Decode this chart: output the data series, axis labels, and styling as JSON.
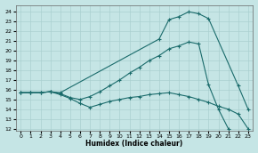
{
  "xlabel": "Humidex (Indice chaleur)",
  "xlim": [
    -0.5,
    23.5
  ],
  "ylim": [
    11.8,
    24.7
  ],
  "yticks": [
    12,
    13,
    14,
    15,
    16,
    17,
    18,
    19,
    20,
    21,
    22,
    23,
    24
  ],
  "xticks": [
    0,
    1,
    2,
    3,
    4,
    5,
    6,
    7,
    8,
    9,
    10,
    11,
    12,
    13,
    14,
    15,
    16,
    17,
    18,
    19,
    20,
    21,
    22,
    23
  ],
  "bg_color": "#c5e5e5",
  "line_color": "#1a6b6b",
  "grid_color": "#aad0d0",
  "lines": [
    {
      "x": [
        0,
        1,
        2,
        3,
        4,
        14,
        15,
        16,
        17,
        18,
        19,
        22,
        23
      ],
      "y": [
        15.7,
        15.7,
        15.7,
        15.8,
        15.7,
        21.2,
        23.2,
        23.5,
        24.0,
        23.8,
        23.3,
        16.4,
        14.0
      ]
    },
    {
      "x": [
        0,
        1,
        2,
        3,
        4,
        5,
        6,
        7,
        8,
        9,
        10,
        11,
        12,
        13,
        14,
        15,
        16,
        17,
        18,
        19,
        20,
        21
      ],
      "y": [
        15.7,
        15.7,
        15.7,
        15.8,
        15.6,
        15.2,
        15.0,
        15.3,
        15.8,
        16.4,
        17.0,
        17.7,
        18.3,
        19.0,
        19.5,
        20.2,
        20.5,
        20.9,
        20.7,
        16.5,
        14.0,
        12.0
      ]
    },
    {
      "x": [
        0,
        1,
        2,
        3,
        4,
        5,
        6,
        7,
        8,
        9,
        10,
        11,
        12,
        13,
        14,
        15,
        16,
        17,
        18,
        19,
        20,
        21,
        22,
        23
      ],
      "y": [
        15.7,
        15.7,
        15.7,
        15.8,
        15.5,
        15.1,
        14.6,
        14.2,
        14.5,
        14.8,
        15.0,
        15.2,
        15.3,
        15.5,
        15.6,
        15.7,
        15.5,
        15.3,
        15.0,
        14.7,
        14.3,
        14.0,
        13.5,
        12.0
      ]
    }
  ]
}
